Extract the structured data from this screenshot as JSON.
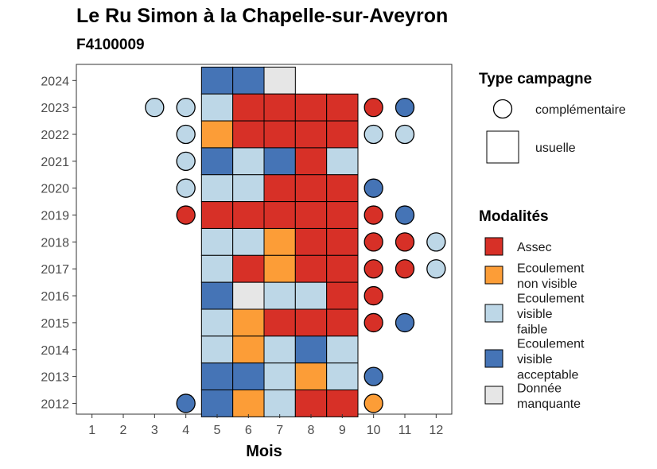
{
  "chart_data": {
    "type": "heatmap",
    "title": "Le Ru Simon à la Chapelle-sur-Aveyron",
    "subtitle": "F4100009",
    "xlabel": "Mois",
    "ylabel": "",
    "x_ticks": [
      "1",
      "2",
      "3",
      "4",
      "5",
      "6",
      "7",
      "8",
      "9",
      "10",
      "11",
      "12"
    ],
    "y_ticks": [
      "2012",
      "2013",
      "2014",
      "2015",
      "2016",
      "2017",
      "2018",
      "2019",
      "2020",
      "2021",
      "2022",
      "2023",
      "2024"
    ],
    "xlim": [
      0.5,
      12.5
    ],
    "ylim": [
      2011.6,
      2024.6
    ],
    "legend_campaign": {
      "title": "Type campagne",
      "items": [
        {
          "key": "complementaire",
          "label": "complémentaire",
          "shape": "circle"
        },
        {
          "key": "usuelle",
          "label": "usuelle",
          "shape": "square"
        }
      ]
    },
    "legend_modalities": {
      "title": "Modalités",
      "items": [
        {
          "key": "A",
          "lines": [
            "Assec"
          ],
          "color": "#d73027"
        },
        {
          "key": "N",
          "lines": [
            "Ecoulement",
            "non visible"
          ],
          "color": "#fc9d37"
        },
        {
          "key": "F",
          "lines": [
            "Ecoulement",
            "visible",
            "faible"
          ],
          "color": "#bdd7e7"
        },
        {
          "key": "V",
          "lines": [
            "Ecoulement",
            "visible",
            "acceptable"
          ],
          "color": "#4574b6"
        },
        {
          "key": "M",
          "lines": [
            "Donnée",
            "manquante"
          ],
          "color": "#e6e6e6"
        }
      ]
    },
    "usuelle": [
      {
        "year": 2024,
        "months": {
          "5": "V",
          "6": "V",
          "7": "M"
        }
      },
      {
        "year": 2023,
        "months": {
          "5": "F",
          "6": "A",
          "7": "A",
          "8": "A",
          "9": "A"
        }
      },
      {
        "year": 2022,
        "months": {
          "5": "N",
          "6": "A",
          "7": "A",
          "8": "A",
          "9": "A"
        }
      },
      {
        "year": 2021,
        "months": {
          "5": "V",
          "6": "F",
          "7": "V",
          "8": "A",
          "9": "F"
        }
      },
      {
        "year": 2020,
        "months": {
          "5": "F",
          "6": "F",
          "7": "A",
          "8": "A",
          "9": "A"
        }
      },
      {
        "year": 2019,
        "months": {
          "5": "A",
          "6": "A",
          "7": "A",
          "8": "A",
          "9": "A"
        }
      },
      {
        "year": 2018,
        "months": {
          "5": "F",
          "6": "F",
          "7": "N",
          "8": "A",
          "9": "A"
        }
      },
      {
        "year": 2017,
        "months": {
          "5": "F",
          "6": "A",
          "7": "N",
          "8": "A",
          "9": "A"
        }
      },
      {
        "year": 2016,
        "months": {
          "5": "V",
          "6": "M",
          "7": "F",
          "8": "F",
          "9": "A"
        }
      },
      {
        "year": 2015,
        "months": {
          "5": "F",
          "6": "N",
          "7": "A",
          "8": "A",
          "9": "A"
        }
      },
      {
        "year": 2014,
        "months": {
          "5": "F",
          "6": "N",
          "7": "F",
          "8": "V",
          "9": "F"
        }
      },
      {
        "year": 2013,
        "months": {
          "5": "V",
          "6": "V",
          "7": "F",
          "8": "N",
          "9": "F"
        }
      },
      {
        "year": 2012,
        "months": {
          "5": "V",
          "6": "N",
          "7": "F",
          "8": "A",
          "9": "A"
        }
      }
    ],
    "complementaire": [
      {
        "year": 2023,
        "month": 3,
        "value": "F"
      },
      {
        "year": 2023,
        "month": 4,
        "value": "F"
      },
      {
        "year": 2023,
        "month": 10,
        "value": "A"
      },
      {
        "year": 2023,
        "month": 11,
        "value": "V"
      },
      {
        "year": 2022,
        "month": 4,
        "value": "F"
      },
      {
        "year": 2022,
        "month": 10,
        "value": "F"
      },
      {
        "year": 2022,
        "month": 11,
        "value": "F"
      },
      {
        "year": 2021,
        "month": 4,
        "value": "F"
      },
      {
        "year": 2020,
        "month": 4,
        "value": "F"
      },
      {
        "year": 2020,
        "month": 10,
        "value": "V"
      },
      {
        "year": 2019,
        "month": 4,
        "value": "A"
      },
      {
        "year": 2019,
        "month": 10,
        "value": "A"
      },
      {
        "year": 2019,
        "month": 11,
        "value": "V"
      },
      {
        "year": 2018,
        "month": 10,
        "value": "A"
      },
      {
        "year": 2018,
        "month": 11,
        "value": "A"
      },
      {
        "year": 2018,
        "month": 12,
        "value": "F"
      },
      {
        "year": 2017,
        "month": 10,
        "value": "A"
      },
      {
        "year": 2017,
        "month": 11,
        "value": "A"
      },
      {
        "year": 2017,
        "month": 12,
        "value": "F"
      },
      {
        "year": 2016,
        "month": 10,
        "value": "A"
      },
      {
        "year": 2015,
        "month": 10,
        "value": "A"
      },
      {
        "year": 2015,
        "month": 11,
        "value": "V"
      },
      {
        "year": 2013,
        "month": 10,
        "value": "V"
      },
      {
        "year": 2012,
        "month": 4,
        "value": "V"
      },
      {
        "year": 2012,
        "month": 10,
        "value": "N"
      }
    ]
  }
}
